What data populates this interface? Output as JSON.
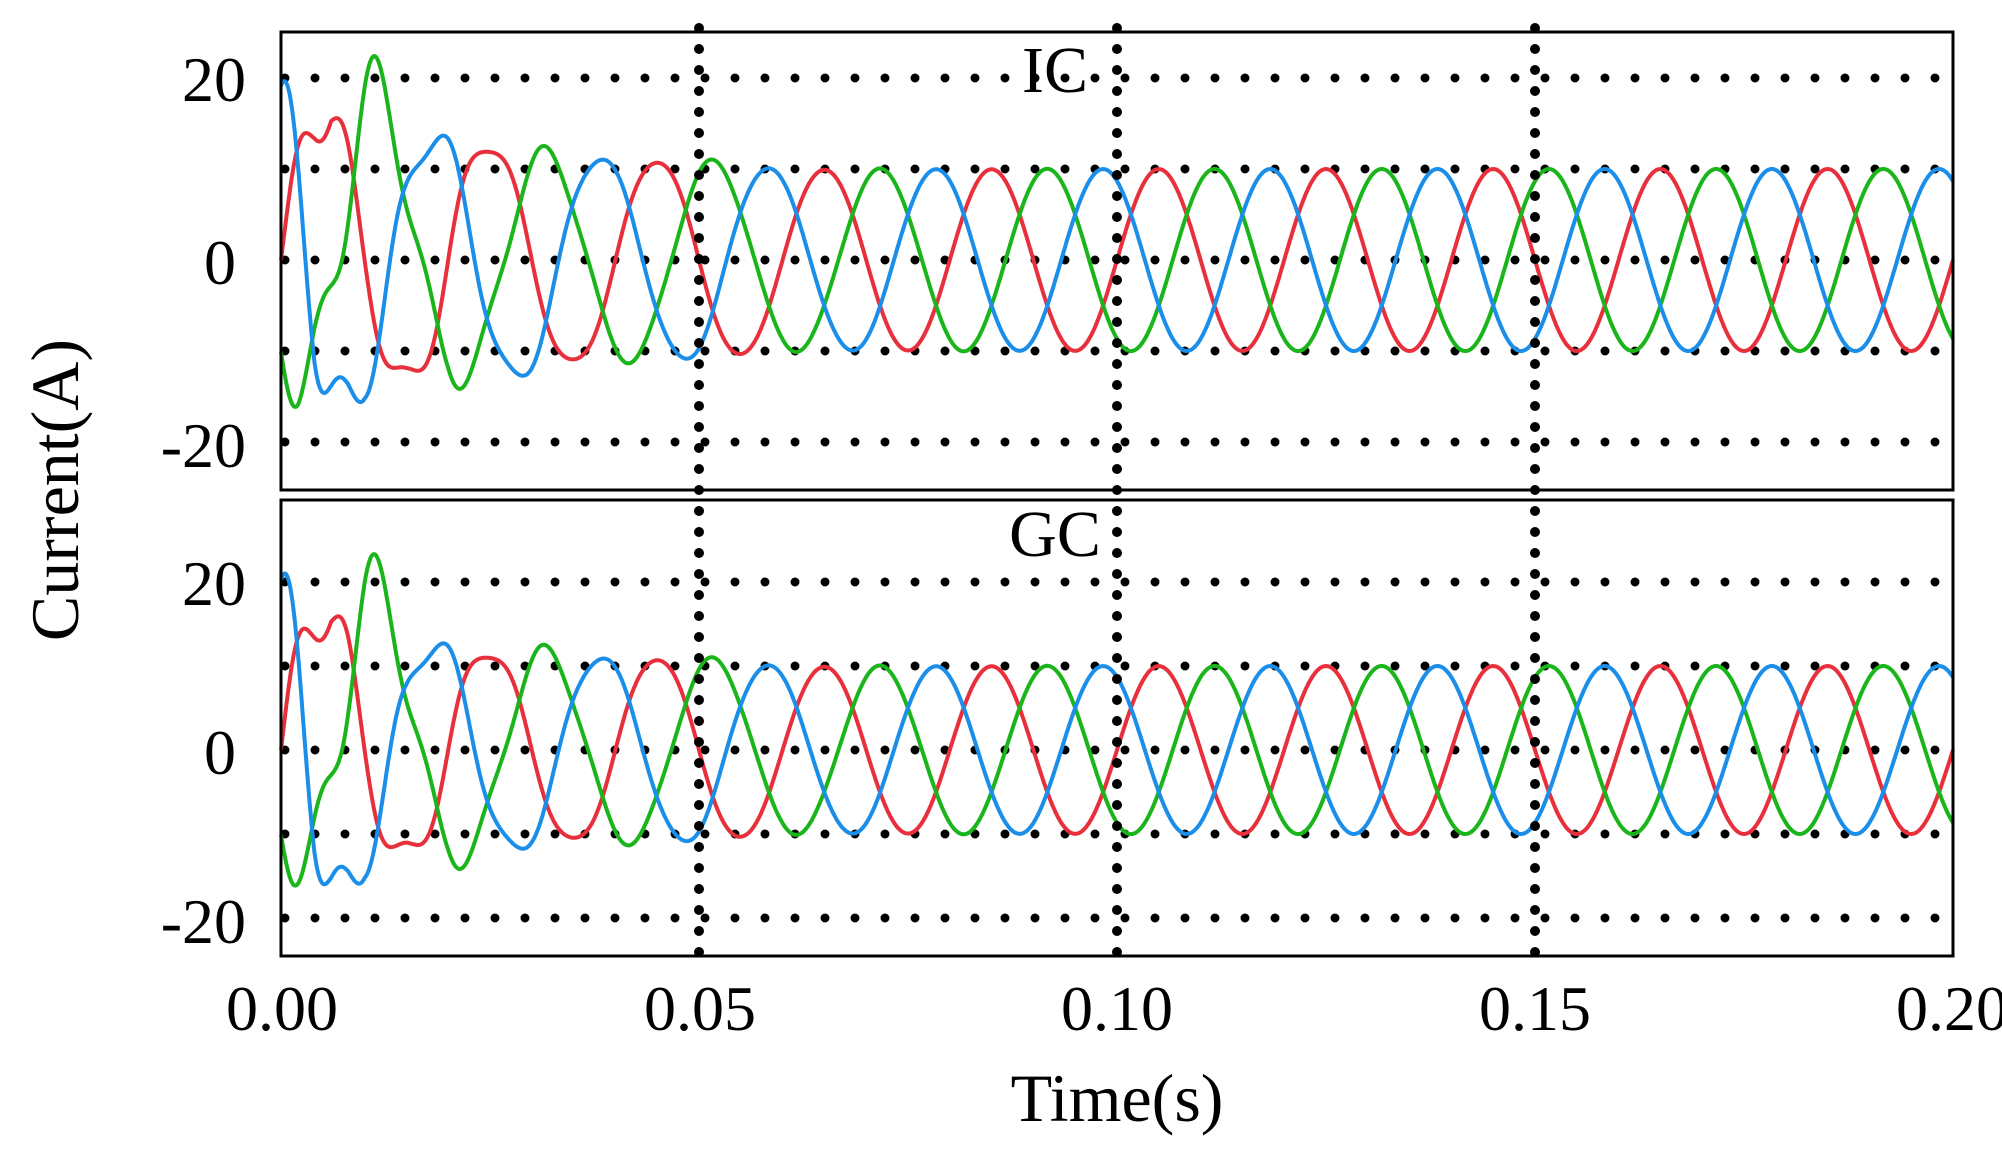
{
  "chart_data": [
    {
      "type": "line",
      "title": "IC",
      "xlabel": "Time(s)",
      "ylabel": "Current(A)",
      "xlim": [
        0,
        0.2
      ],
      "ylim": [
        -25,
        25
      ],
      "yticks": [
        20,
        0,
        -20
      ],
      "ytick_labels": [
        "20",
        "0",
        "-20"
      ],
      "grid_y": [
        20,
        10,
        0,
        -10,
        -20
      ],
      "grid_x": [
        0.05,
        0.1,
        0.15
      ],
      "grid_style": "dotted",
      "frequency_hz": 50,
      "steady_amplitude": 10,
      "series": [
        {
          "color": "#e8303c",
          "phase_deg": 0,
          "x": [
            0,
            0.002,
            0.004,
            0.006,
            0.008,
            0.01,
            0.015,
            0.02,
            0.03,
            0.04,
            0.05,
            0.06,
            0.07,
            0.08,
            0.1,
            0.2
          ],
          "y_peak": [
            11,
            14,
            17,
            19,
            16,
            13,
            14,
            14,
            12,
            11,
            11,
            10,
            10,
            10,
            10,
            10
          ]
        },
        {
          "color": "#1ab51a",
          "phase_deg": 120,
          "x": [
            0,
            0.002,
            0.004,
            0.006,
            0.008,
            0.01,
            0.015,
            0.02,
            0.03,
            0.04,
            0.05,
            0.06,
            0.07,
            0.08,
            0.1,
            0.2
          ],
          "y_peak": [
            10,
            13,
            15,
            18,
            21,
            20,
            16,
            13,
            12,
            11,
            11,
            10,
            10,
            10,
            10,
            10
          ]
        },
        {
          "color": "#1a8ee8",
          "phase_deg": 240,
          "x": [
            0,
            0.002,
            0.004,
            0.006,
            0.008,
            0.01,
            0.015,
            0.02,
            0.03,
            0.04,
            0.05,
            0.06,
            0.07,
            0.08,
            0.1,
            0.2
          ],
          "y_peak": [
            17,
            20,
            23,
            20,
            17,
            15,
            14,
            14,
            13,
            11,
            11,
            10,
            10,
            10,
            10,
            10
          ]
        }
      ]
    },
    {
      "type": "line",
      "title": "GC",
      "xlabel": "Time(s)",
      "ylabel": "Current(A)",
      "xlim": [
        0,
        0.2
      ],
      "ylim": [
        -25,
        25
      ],
      "xticks": [
        0,
        0.05,
        0.1,
        0.15,
        0.2
      ],
      "xtick_labels": [
        "0.00",
        "0.05",
        "0.10",
        "0.15",
        "0.20"
      ],
      "yticks": [
        20,
        0,
        -20
      ],
      "ytick_labels": [
        "20",
        "0",
        "-20"
      ],
      "grid_y": [
        20,
        10,
        0,
        -10,
        -20
      ],
      "grid_x": [
        0.05,
        0.1,
        0.15
      ],
      "grid_style": "dotted",
      "frequency_hz": 50,
      "steady_amplitude": 10,
      "series": [
        {
          "color": "#e8303c",
          "phase_deg": 0,
          "x": [
            0,
            0.002,
            0.004,
            0.006,
            0.008,
            0.01,
            0.015,
            0.02,
            0.03,
            0.04,
            0.05,
            0.06,
            0.07,
            0.08,
            0.1,
            0.2
          ],
          "y_peak": [
            13,
            15,
            17,
            19,
            17,
            14,
            13,
            13,
            11,
            11,
            11,
            10,
            10,
            10,
            10,
            10
          ]
        },
        {
          "color": "#1ab51a",
          "phase_deg": 120,
          "x": [
            0,
            0.002,
            0.004,
            0.006,
            0.008,
            0.01,
            0.015,
            0.02,
            0.03,
            0.04,
            0.05,
            0.06,
            0.07,
            0.08,
            0.1,
            0.2
          ],
          "y_peak": [
            10,
            13,
            16,
            19,
            22,
            21,
            16,
            13,
            12,
            11,
            11,
            10,
            10,
            10,
            10,
            10
          ]
        },
        {
          "color": "#1a8ee8",
          "phase_deg": 240,
          "x": [
            0,
            0.002,
            0.004,
            0.006,
            0.008,
            0.01,
            0.015,
            0.02,
            0.03,
            0.04,
            0.05,
            0.06,
            0.07,
            0.08,
            0.1,
            0.2
          ],
          "y_peak": [
            18,
            22,
            25,
            22,
            18,
            15,
            13,
            13,
            12,
            11,
            11,
            10,
            10,
            10,
            10,
            10
          ]
        }
      ]
    }
  ]
}
